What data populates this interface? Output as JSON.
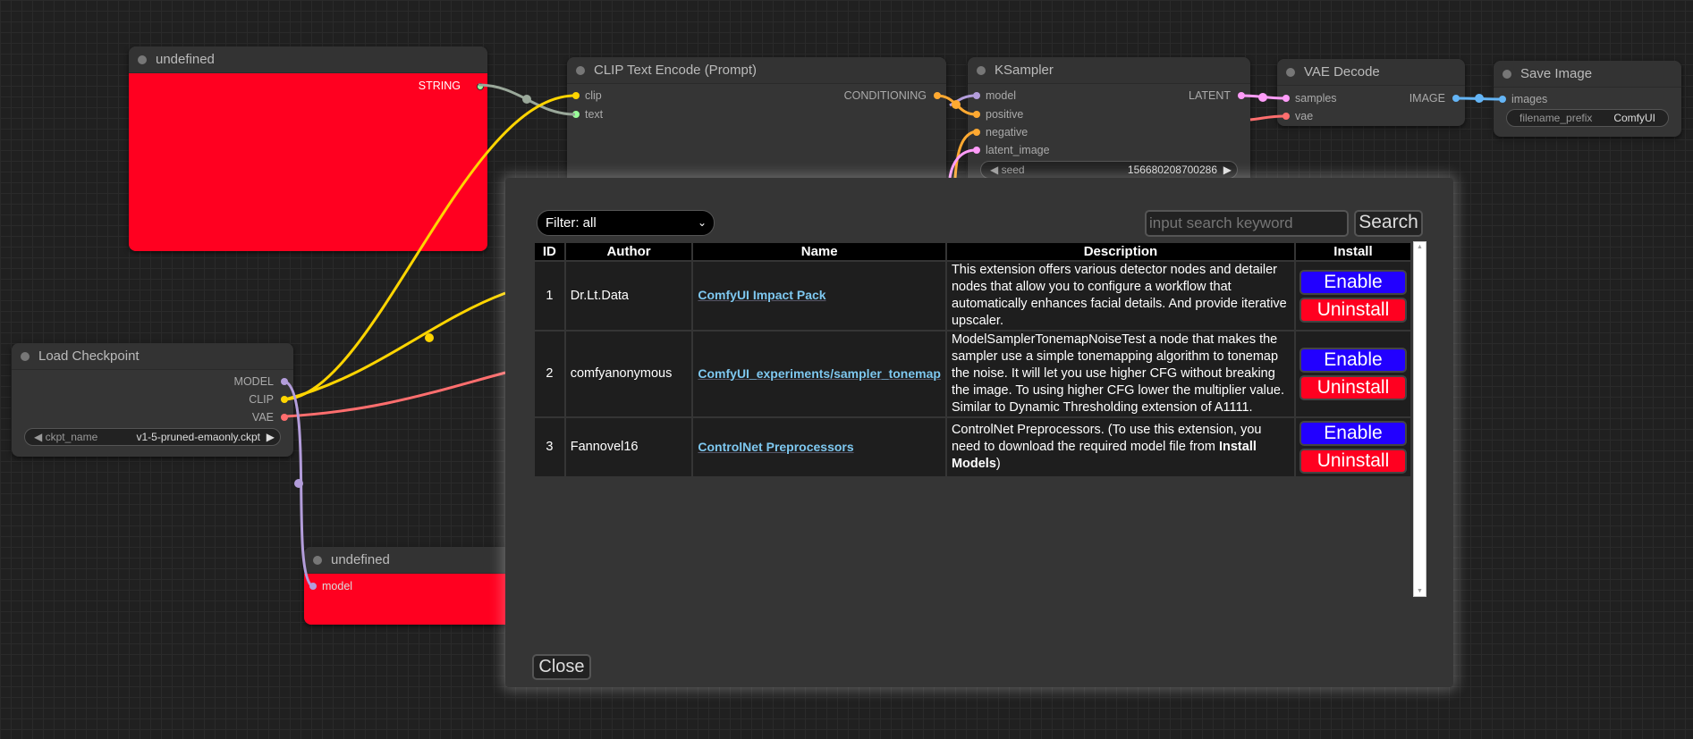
{
  "nodes": {
    "undefined_top": {
      "title": "undefined",
      "output": "STRING"
    },
    "clip_text_encode": {
      "title": "CLIP Text Encode (Prompt)",
      "inputs": [
        "clip",
        "text"
      ],
      "output": "CONDITIONING"
    },
    "ksampler": {
      "title": "KSampler",
      "inputs": [
        "model",
        "positive",
        "negative",
        "latent_image"
      ],
      "output": "LATENT",
      "seed_label": "seed",
      "seed_value": "156680208700286"
    },
    "vae_decode": {
      "title": "VAE Decode",
      "inputs": [
        "samples",
        "vae"
      ],
      "output": "IMAGE"
    },
    "save_image": {
      "title": "Save Image",
      "input": "images",
      "prefix_label": "filename_prefix",
      "prefix_value": "ComfyUI"
    },
    "load_checkpoint": {
      "title": "Load Checkpoint",
      "outputs": [
        "MODEL",
        "CLIP",
        "VAE"
      ],
      "ckpt_label": "ckpt_name",
      "ckpt_value": "v1-5-pruned-emaonly.ckpt"
    },
    "undefined_bottom": {
      "title": "undefined",
      "input": "model"
    }
  },
  "colors": {
    "clip": "#ffd500",
    "model": "#b39ddb",
    "vae": "#ff6e6e",
    "conditioning": "#ffa931",
    "latent": "#ff9cf9",
    "image": "#64b5f6",
    "string": "#9aa89a",
    "error_node": "#ff0020",
    "enable": "#2200ff",
    "uninstall": "#ff0020"
  },
  "dialog": {
    "filter": "Filter: all",
    "search_placeholder": "input search keyword",
    "search_label": "Search",
    "close_label": "Close",
    "columns": [
      "ID",
      "Author",
      "Name",
      "Description",
      "Install"
    ],
    "rows": [
      {
        "id": "1",
        "author": "Dr.Lt.Data",
        "name": "ComfyUI Impact Pack",
        "description": "This extension offers various detector nodes and detailer nodes that allow you to configure a workflow that automatically enhances facial details. And provide iterative upscaler.",
        "enable": "Enable",
        "uninstall": "Uninstall"
      },
      {
        "id": "2",
        "author": "comfyanonymous",
        "name": "ComfyUI_experiments/sampler_tonemap",
        "description": "ModelSamplerTonemapNoiseTest a node that makes the sampler use a simple tonemapping algorithm to tonemap the noise. It will let you use higher CFG without breaking the image. To using higher CFG lower the multiplier value. Similar to Dynamic Thresholding extension of A1111.",
        "enable": "Enable",
        "uninstall": "Uninstall"
      },
      {
        "id": "3",
        "author": "Fannovel16",
        "name": "ControlNet Preprocessors",
        "description_pre": "ControlNet Preprocessors. (To use this extension, you need to download the required model file from ",
        "description_bold": "Install Models",
        "description_post": ")",
        "enable": "Enable",
        "uninstall": "Uninstall"
      }
    ]
  }
}
